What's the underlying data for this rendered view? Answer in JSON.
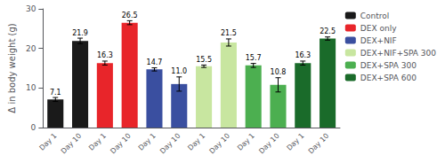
{
  "chart_data": {
    "type": "bar",
    "categories": [
      "Day 1",
      "Day 10",
      "Day 1",
      "Day 10",
      "Day 1",
      "Day 10",
      "Day 1",
      "Day 10",
      "Day 1",
      "Day 10",
      "Day 1",
      "Day 10"
    ],
    "series": [
      {
        "name": "Control",
        "color": "#1a1a1a",
        "values": [
          7.1,
          21.9,
          null,
          null,
          null,
          null,
          null,
          null,
          null,
          null,
          null,
          null
        ],
        "errors": [
          0.5,
          0.7,
          null,
          null,
          null,
          null,
          null,
          null,
          null,
          null,
          null,
          null
        ],
        "value_labels": [
          "7.1",
          "21.9",
          null,
          null,
          null,
          null,
          null,
          null,
          null,
          null,
          null,
          null
        ]
      },
      {
        "name": "DEX only",
        "color": "#e8252a",
        "values": [
          null,
          null,
          16.3,
          26.5,
          null,
          null,
          null,
          null,
          null,
          null,
          null,
          null
        ],
        "errors": [
          null,
          null,
          0.5,
          0.5,
          null,
          null,
          null,
          null,
          null,
          null,
          null,
          null
        ],
        "value_labels": [
          null,
          null,
          "16.3",
          "26.5",
          null,
          null,
          null,
          null,
          null,
          null,
          null,
          null
        ]
      },
      {
        "name": "DEX+NIF",
        "color": "#3a4fa0",
        "values": [
          null,
          null,
          null,
          null,
          14.7,
          11.0,
          null,
          null,
          null,
          null,
          null,
          null
        ],
        "errors": [
          null,
          null,
          null,
          null,
          0.4,
          1.8,
          null,
          null,
          null,
          null,
          null,
          null
        ],
        "value_labels": [
          null,
          null,
          null,
          null,
          "14.7",
          "11.0",
          null,
          null,
          null,
          null,
          null,
          null
        ]
      },
      {
        "name": "DEX+NIF+SPA 300",
        "color": "#c8e6a0",
        "values": [
          null,
          null,
          null,
          null,
          null,
          null,
          15.5,
          21.5,
          null,
          null,
          null,
          null
        ],
        "errors": [
          null,
          null,
          null,
          null,
          null,
          null,
          0.3,
          0.9,
          null,
          null,
          null,
          null
        ],
        "value_labels": [
          null,
          null,
          null,
          null,
          null,
          null,
          "15.5",
          "21.5",
          null,
          null,
          null,
          null
        ]
      },
      {
        "name": "DEX+SPA 300",
        "color": "#4caf50",
        "values": [
          null,
          null,
          null,
          null,
          null,
          null,
          null,
          null,
          15.7,
          10.8,
          null,
          null
        ],
        "errors": [
          null,
          null,
          null,
          null,
          null,
          null,
          null,
          null,
          0.5,
          1.8,
          null,
          null
        ],
        "value_labels": [
          null,
          null,
          null,
          null,
          null,
          null,
          null,
          null,
          "15.7",
          "10.8",
          null,
          null
        ]
      },
      {
        "name": "DEX+SPA 600",
        "color": "#1a6b2a",
        "values": [
          null,
          null,
          null,
          null,
          null,
          null,
          null,
          null,
          null,
          null,
          16.3,
          22.5
        ],
        "errors": [
          null,
          null,
          null,
          null,
          null,
          null,
          null,
          null,
          null,
          null,
          0.5,
          0.4
        ],
        "value_labels": [
          null,
          null,
          null,
          null,
          null,
          null,
          null,
          null,
          null,
          null,
          "16.3",
          "22.5"
        ]
      }
    ],
    "ylabel": "Δ in body weight (g)",
    "ylim": [
      0,
      30
    ],
    "yticks": [
      0,
      10,
      20,
      30
    ],
    "grid": false,
    "legend": "upper right",
    "data_labels": true
  }
}
